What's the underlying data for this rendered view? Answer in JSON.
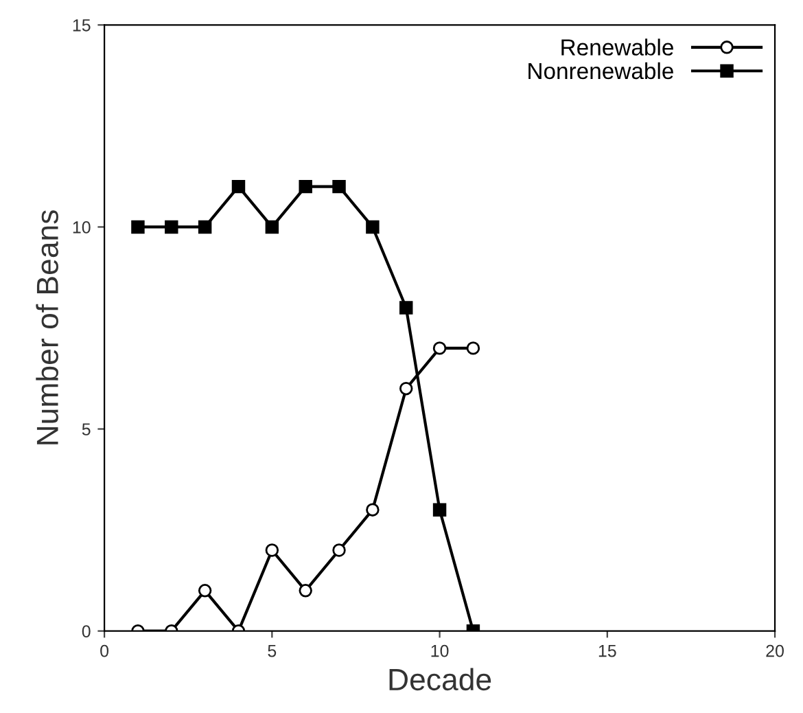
{
  "chart_data": {
    "type": "line",
    "xlabel": "Decade",
    "ylabel": "Number of Beans",
    "x": [
      1,
      2,
      3,
      4,
      5,
      6,
      7,
      8,
      9,
      10,
      11
    ],
    "series": [
      {
        "name": "Renewable",
        "color": "#000000",
        "marker": "circle",
        "values": [
          0,
          0,
          1,
          0,
          2,
          1,
          2,
          3,
          6,
          7,
          7
        ]
      },
      {
        "name": "Nonrenewable",
        "color": "#000000",
        "marker": "square",
        "values": [
          10,
          10,
          10,
          11,
          10,
          11,
          11,
          10,
          8,
          3,
          0
        ]
      }
    ],
    "xlim": [
      0,
      20
    ],
    "xticks": [
      0,
      5,
      10,
      15,
      20
    ],
    "ylim": [
      0,
      15
    ],
    "yticks": [
      0,
      5,
      10,
      15
    ],
    "grid": false,
    "legend": "top right",
    "line_style": "solid"
  }
}
